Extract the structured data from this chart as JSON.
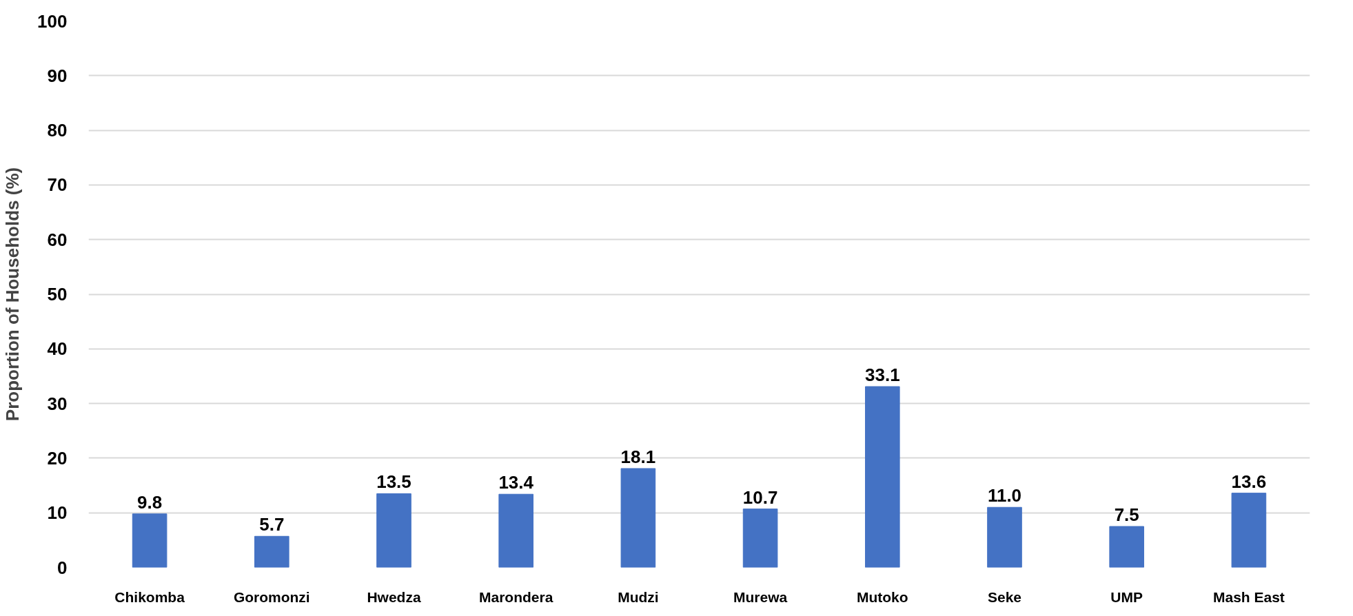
{
  "chart_data": {
    "type": "bar",
    "ylabel": "Proportion of Households (%)",
    "categories": [
      "Chikomba",
      "Goromonzi",
      "Hwedza",
      "Marondera",
      "Mudzi",
      "Murewa",
      "Mutoko",
      "Seke",
      "UMP",
      "Mash East"
    ],
    "values": [
      9.8,
      5.7,
      13.5,
      13.4,
      18.1,
      10.7,
      33.1,
      11.0,
      7.5,
      13.6
    ],
    "value_labels": [
      "9.8",
      "5.7",
      "13.5",
      "13.4",
      "18.1",
      "10.7",
      "33.1",
      "11.0",
      "7.5",
      "13.6"
    ],
    "color": "#4472c4",
    "ylim": [
      0,
      100
    ],
    "yticks": [
      0,
      10,
      20,
      30,
      40,
      50,
      60,
      70,
      80,
      90,
      100
    ],
    "grid": "y"
  }
}
